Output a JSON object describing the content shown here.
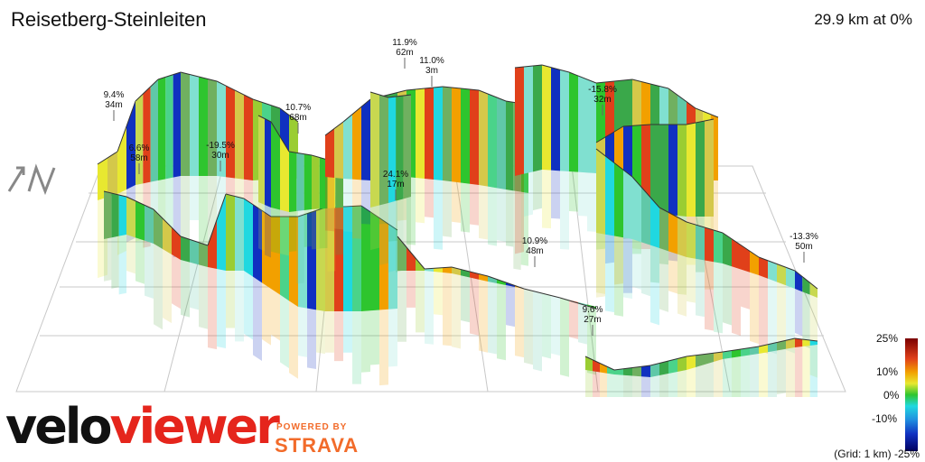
{
  "title": "Reisetberg-Steinleiten",
  "summary": "29.9 km at 0%",
  "grid_note": "(Grid: 1 km)",
  "branding": {
    "logo_part1": "velo",
    "logo_part2": "viewer",
    "powered_by": "POWERED BY",
    "strava": "STRAVA"
  },
  "chart_data": {
    "type": "3d-elevation-profile",
    "title": "Reisetberg-Steinleiten",
    "distance_km": 29.9,
    "average_gradient_pct": 0,
    "grid_spacing_km": 1,
    "gradient_scale": {
      "ticks": [
        "25%",
        "10%",
        "0%",
        "-10%",
        "-25%"
      ],
      "values": [
        25,
        10,
        0,
        -10,
        -25
      ]
    },
    "annotations": [
      {
        "gradient": "9.4%",
        "length": "34m"
      },
      {
        "gradient": "6.6%",
        "length": "58m"
      },
      {
        "gradient": "-19.5%",
        "length": "30m"
      },
      {
        "gradient": "10.7%",
        "length": "68m"
      },
      {
        "gradient": "11.9%",
        "length": "62m"
      },
      {
        "gradient": "11.0%",
        "length": "3m"
      },
      {
        "gradient": "24.1%",
        "length": "17m"
      },
      {
        "gradient": "-15.8%",
        "length": "32m"
      },
      {
        "gradient": "10.9%",
        "length": "48m"
      },
      {
        "gradient": "9.6%",
        "length": "27m"
      },
      {
        "gradient": "-13.3%",
        "length": "50m"
      }
    ]
  }
}
